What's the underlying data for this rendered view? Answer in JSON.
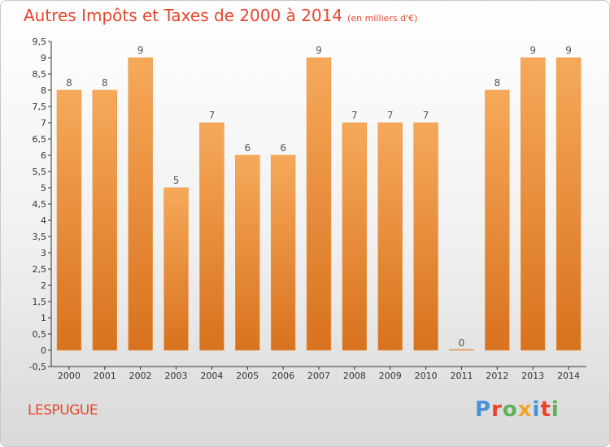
{
  "header": {
    "title": "Autres Impôts et Taxes de 2000 à 2014",
    "unit": "(en milliers d'€)"
  },
  "footer": {
    "commune": "LESPUGUE",
    "logo_text": "Proxiti"
  },
  "colors": {
    "title": "#e8452c",
    "bar_light": "#f6a95a",
    "bar_dark": "#d8721e",
    "logo": [
      "#4a90d9",
      "#e8452c",
      "#5fb157",
      "#f2a32a",
      "#4a90d9",
      "#e8452c",
      "#5fb157"
    ]
  },
  "chart_data": {
    "type": "bar",
    "title": "Autres Impôts et Taxes de 2000 à 2014",
    "subtitle": "(en milliers d'€)",
    "categories": [
      "2000",
      "2001",
      "2002",
      "2003",
      "2004",
      "2005",
      "2006",
      "2007",
      "2008",
      "2009",
      "2010",
      "2011",
      "2012",
      "2013",
      "2014"
    ],
    "values": [
      8,
      8,
      9,
      5,
      7,
      6,
      6,
      9,
      7,
      7,
      7,
      0,
      8,
      9,
      9
    ],
    "data_labels": [
      "8",
      "8",
      "9",
      "5",
      "7",
      "6",
      "6",
      "9",
      "7",
      "7",
      "7",
      "0",
      "8",
      "9",
      "9"
    ],
    "yticks": [
      "-0,5",
      "0",
      "0,5",
      "1",
      "1,5",
      "2",
      "2,5",
      "3",
      "3,5",
      "4",
      "4,5",
      "5",
      "5,5",
      "6",
      "6,5",
      "7",
      "7,5",
      "8",
      "8,5",
      "9",
      "9,5"
    ],
    "ylim": [
      -0.5,
      9.5
    ],
    "xlabel": "",
    "ylabel": "",
    "grid": false,
    "legend": "none"
  }
}
